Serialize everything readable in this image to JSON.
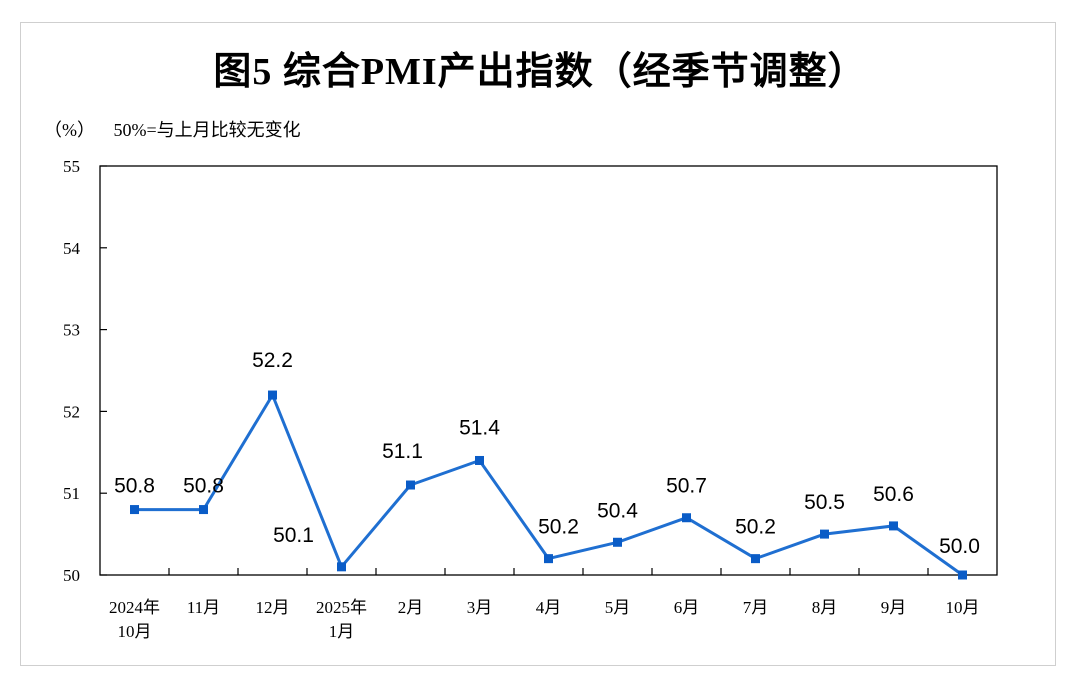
{
  "chart_data": {
    "type": "line",
    "title": "图5  综合PMI产出指数（经季节调整）",
    "unit": "（%）",
    "note": "50%=与上月比较无变化",
    "categories": [
      [
        "2024年",
        "10月"
      ],
      [
        "11月"
      ],
      [
        "12月"
      ],
      [
        "2025年",
        "1月"
      ],
      [
        "2月"
      ],
      [
        "3月"
      ],
      [
        "4月"
      ],
      [
        "5月"
      ],
      [
        "6月"
      ],
      [
        "7月"
      ],
      [
        "8月"
      ],
      [
        "9月"
      ],
      [
        "10月"
      ]
    ],
    "values": [
      50.8,
      50.8,
      52.2,
      50.1,
      51.1,
      51.4,
      50.2,
      50.4,
      50.7,
      50.2,
      50.5,
      50.6,
      50.0
    ],
    "data_labels": [
      "50.8",
      "50.8",
      "52.2",
      "50.1",
      "51.1",
      "51.4",
      "50.2",
      "50.4",
      "50.7",
      "50.2",
      "50.5",
      "50.6",
      "50.0"
    ],
    "ylim": [
      50,
      55
    ],
    "yticks": [
      50,
      51,
      52,
      53,
      54,
      55
    ],
    "grid": false,
    "line_color": "#1f6fd1",
    "marker_color": "#0a5cc7"
  }
}
